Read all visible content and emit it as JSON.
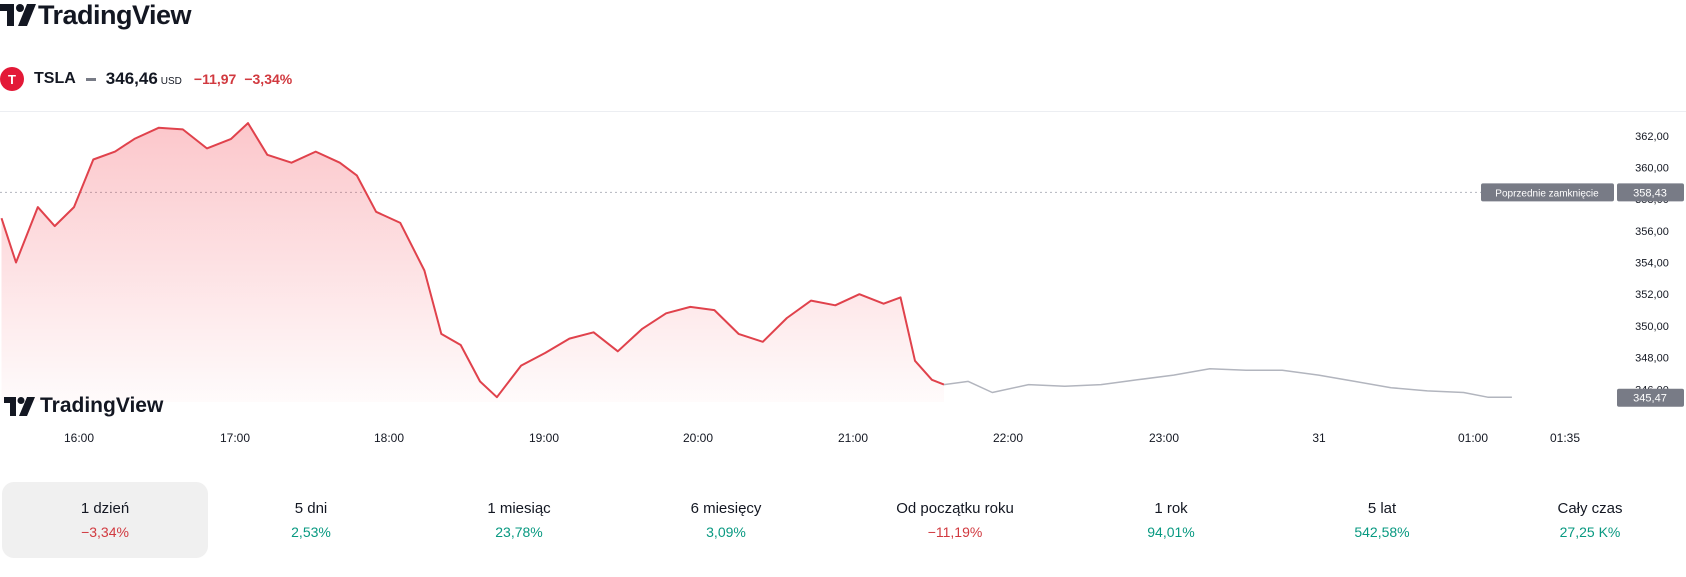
{
  "brand": {
    "name": "TradingView",
    "watermark": "TradingView"
  },
  "ticker": {
    "icon": "tesla-logo-icon",
    "symbol": "TSLA",
    "price": "346,46",
    "currency": "USD",
    "change": "−11,97",
    "change_pct": "−3,34%",
    "change_color": "#d1393f"
  },
  "chart_data": {
    "type": "line",
    "x_labels": [
      "16:00",
      "17:00",
      "18:00",
      "19:00",
      "20:00",
      "21:00",
      "22:00",
      "23:00",
      "31",
      "01:00",
      "01:35"
    ],
    "y_ticks": [
      "362,00",
      "360,00",
      "358,00",
      "356,00",
      "354,00",
      "352,00",
      "350,00",
      "348,00",
      "346,00"
    ],
    "ylim": [
      345.2,
      363.5
    ],
    "previous_close": {
      "label": "Poprzednie zamknięcie",
      "value": 358.43,
      "text": "358,43"
    },
    "last_price": {
      "value": 345.47,
      "text": "345,47"
    },
    "grid": false,
    "series": [
      {
        "session": "regular",
        "color": "#e0424c",
        "x": [
          "15:30",
          "15:36",
          "15:45",
          "15:52",
          "16:00",
          "16:08",
          "16:17",
          "16:25",
          "16:35",
          "16:45",
          "16:55",
          "17:05",
          "17:12",
          "17:20",
          "17:30",
          "17:40",
          "17:50",
          "17:57",
          "18:05",
          "18:15",
          "18:25",
          "18:32",
          "18:40",
          "18:48",
          "18:55",
          "19:05",
          "19:15",
          "19:25",
          "19:35",
          "19:45",
          "19:55",
          "20:05",
          "20:15",
          "20:25",
          "20:35",
          "20:45",
          "20:55",
          "21:05",
          "21:15",
          "21:25",
          "21:35",
          "21:42",
          "21:48",
          "21:55",
          "22:00"
        ],
        "values": [
          356.8,
          354.0,
          357.5,
          356.3,
          357.5,
          360.5,
          361.0,
          361.8,
          362.5,
          362.4,
          361.2,
          361.8,
          362.8,
          360.8,
          360.3,
          361.0,
          360.3,
          359.5,
          357.2,
          356.5,
          353.5,
          349.5,
          348.8,
          346.5,
          345.5,
          347.5,
          348.3,
          349.2,
          349.6,
          348.4,
          349.8,
          350.8,
          351.2,
          351.0,
          349.5,
          349.0,
          350.5,
          351.6,
          351.3,
          352.0,
          351.4,
          351.8,
          347.8,
          346.6,
          346.3
        ]
      },
      {
        "session": "extended",
        "color": "#b2b5be",
        "x": [
          "22:00",
          "22:10",
          "22:20",
          "22:35",
          "22:50",
          "23:05",
          "23:20",
          "23:35",
          "23:50",
          "00:05",
          "00:20",
          "00:35",
          "00:50",
          "01:05",
          "01:20",
          "01:35",
          "01:45",
          "01:55"
        ],
        "values": [
          346.3,
          346.5,
          345.8,
          346.3,
          346.2,
          346.3,
          346.6,
          346.9,
          347.3,
          347.2,
          347.2,
          346.9,
          346.5,
          346.1,
          345.9,
          345.8,
          345.5,
          345.5
        ]
      }
    ]
  },
  "periods": [
    {
      "label": "1 dzień",
      "value": "−3,34%",
      "sign": "neg",
      "active": true
    },
    {
      "label": "5 dni",
      "value": "2,53%",
      "sign": "pos",
      "active": false
    },
    {
      "label": "1 miesiąc",
      "value": "23,78%",
      "sign": "pos",
      "active": false
    },
    {
      "label": "6 miesięcy",
      "value": "3,09%",
      "sign": "pos",
      "active": false
    },
    {
      "label": "Od początku roku",
      "value": "−11,19%",
      "sign": "neg",
      "active": false
    },
    {
      "label": "1 rok",
      "value": "94,01%",
      "sign": "pos",
      "active": false
    },
    {
      "label": "5 lat",
      "value": "542,58%",
      "sign": "pos",
      "active": false
    },
    {
      "label": "Cały czas",
      "value": "27,25 K%",
      "sign": "pos",
      "active": false
    }
  ]
}
